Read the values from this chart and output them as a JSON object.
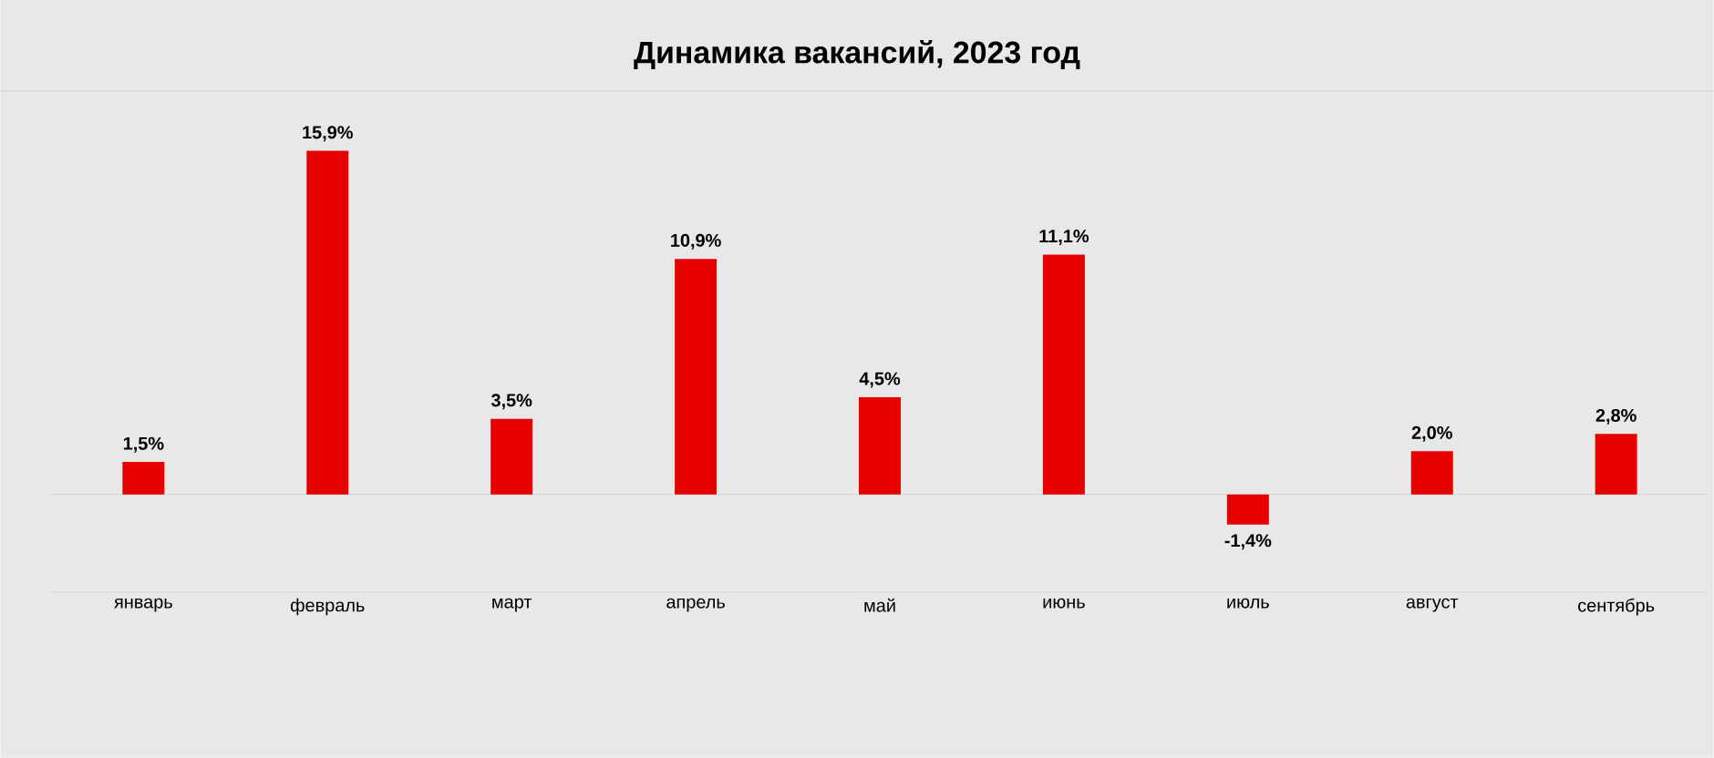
{
  "chart_data": {
    "type": "bar",
    "title": "Динамика вакансий, 2023 год",
    "categories": [
      "январь",
      "февраль",
      "март",
      "апрель",
      "май",
      "июнь",
      "июль",
      "август",
      "сентябрь"
    ],
    "values": [
      1.5,
      15.9,
      3.5,
      10.9,
      4.5,
      11.1,
      -1.4,
      2.0,
      2.8
    ],
    "value_labels": [
      "1,5%",
      "15,9%",
      "3,5%",
      "10,9%",
      "4,5%",
      "11,1%",
      "-1,4%",
      "2,0%",
      "2,8%"
    ],
    "color": "#e60000"
  }
}
